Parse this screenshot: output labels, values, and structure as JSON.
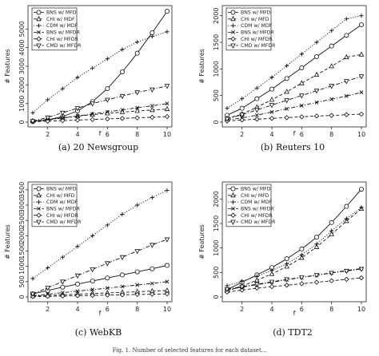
{
  "figure_footnote": "Fig. 1. Number of selected features for each dataset...",
  "chart_data": [
    {
      "type": "line",
      "caption": "(a) 20 Newsgroup",
      "xlabel": "f",
      "ylabel": "# Features",
      "xlim": [
        1,
        10
      ],
      "ylim": [
        0,
        6000
      ],
      "xticks": [
        2,
        4,
        6,
        8,
        10
      ],
      "yticks": [
        0,
        1000,
        2000,
        3000,
        4000,
        5000
      ],
      "legend_position": "top-left",
      "x": [
        1,
        2,
        3,
        4,
        5,
        6,
        7,
        8,
        9,
        10
      ],
      "series": [
        {
          "name": "BNS w/ MFD",
          "marker": "circle",
          "dash": "solid",
          "values": [
            40,
            120,
            300,
            600,
            1100,
            1800,
            2700,
            3700,
            4800,
            5950
          ]
        },
        {
          "name": "CHI w/ MDF",
          "marker": "triangle-up",
          "dash": "dashed",
          "values": [
            60,
            140,
            230,
            320,
            400,
            470,
            540,
            600,
            650,
            700
          ]
        },
        {
          "name": "CDM w/ MDF",
          "marker": "plus",
          "dash": "dotted",
          "values": [
            500,
            1200,
            1800,
            2400,
            2900,
            3400,
            3900,
            4300,
            4600,
            4850
          ]
        },
        {
          "name": "BNS w/ MFDR",
          "marker": "cross",
          "dash": "dashdot",
          "values": [
            40,
            120,
            220,
            330,
            440,
            550,
            660,
            770,
            880,
            1000
          ]
        },
        {
          "name": "CHI w/ MFDR",
          "marker": "diamond",
          "dash": "dashed",
          "values": [
            20,
            50,
            80,
            110,
            140,
            170,
            200,
            230,
            260,
            300
          ]
        },
        {
          "name": "CMD w/ MFDR",
          "marker": "triangle-down",
          "dash": "dashdot",
          "values": [
            60,
            250,
            500,
            750,
            1000,
            1200,
            1400,
            1600,
            1750,
            1950
          ]
        }
      ]
    },
    {
      "type": "line",
      "caption": "(b) Reuters 10",
      "xlabel": "f",
      "ylabel": "# Features",
      "xlim": [
        1,
        10
      ],
      "ylim": [
        0,
        2100
      ],
      "xticks": [
        2,
        4,
        6,
        8,
        10
      ],
      "yticks": [
        0,
        500,
        1000,
        1500,
        2000
      ],
      "legend_position": "top-left",
      "x": [
        1,
        2,
        3,
        4,
        5,
        6,
        7,
        8,
        9,
        10
      ],
      "series": [
        {
          "name": "BNS w/ MFD",
          "marker": "circle",
          "dash": "solid",
          "values": [
            130,
            260,
            440,
            620,
            820,
            1020,
            1230,
            1430,
            1630,
            1830
          ]
        },
        {
          "name": "CHI w/ MFD",
          "marker": "triangle-up",
          "dash": "dashed",
          "values": [
            70,
            150,
            280,
            420,
            570,
            730,
            890,
            1050,
            1220,
            1270
          ]
        },
        {
          "name": "CDM w/ MDF",
          "marker": "plus",
          "dash": "dotted",
          "values": [
            260,
            440,
            640,
            840,
            1060,
            1280,
            1500,
            1720,
            1940,
            2000
          ]
        },
        {
          "name": "BNS w/ MFDR",
          "marker": "cross",
          "dash": "dashdot",
          "values": [
            40,
            80,
            130,
            190,
            250,
            310,
            370,
            430,
            490,
            560
          ]
        },
        {
          "name": "CHI w/ MFDR",
          "marker": "diamond",
          "dash": "dashed",
          "values": [
            20,
            40,
            55,
            70,
            85,
            100,
            115,
            125,
            140,
            150
          ]
        },
        {
          "name": "CMD w/ MFDR",
          "marker": "triangle-down",
          "dash": "dashdot",
          "values": [
            60,
            140,
            230,
            320,
            410,
            500,
            590,
            680,
            770,
            860
          ]
        }
      ]
    },
    {
      "type": "line",
      "caption": "(c) WebKB",
      "xlabel": "f",
      "ylabel": "# Features",
      "xlim": [
        1,
        10
      ],
      "ylim": [
        0,
        3600
      ],
      "xticks": [
        2,
        4,
        6,
        8,
        10
      ],
      "yticks": [
        0,
        500,
        1000,
        1500,
        2000,
        2500,
        3000,
        3500
      ],
      "legend_position": "top-left",
      "x": [
        1,
        2,
        3,
        4,
        5,
        6,
        7,
        8,
        9,
        10
      ],
      "series": [
        {
          "name": "BNS w/ MFD",
          "marker": "circle",
          "dash": "solid",
          "values": [
            100,
            210,
            320,
            420,
            520,
            620,
            720,
            820,
            920,
            1030
          ]
        },
        {
          "name": "CHI w/ MFD",
          "marker": "triangle-up",
          "dash": "dashed",
          "values": [
            30,
            50,
            70,
            90,
            110,
            130,
            150,
            170,
            190,
            210
          ]
        },
        {
          "name": "CDM w/ MDF",
          "marker": "plus",
          "dash": "dotted",
          "values": [
            600,
            950,
            1300,
            1650,
            2000,
            2350,
            2700,
            3000,
            3250,
            3480
          ]
        },
        {
          "name": "BNS w/ MFDR",
          "marker": "cross",
          "dash": "dashdot",
          "values": [
            40,
            90,
            140,
            190,
            240,
            290,
            340,
            390,
            440,
            500
          ]
        },
        {
          "name": "CHI w/ MFDR",
          "marker": "diamond",
          "dash": "dashed",
          "values": [
            10,
            20,
            30,
            40,
            50,
            60,
            70,
            80,
            90,
            100
          ]
        },
        {
          "name": "CMD w/ MFDR",
          "marker": "triangle-down",
          "dash": "dashdot",
          "values": [
            100,
            300,
            500,
            700,
            900,
            1100,
            1300,
            1500,
            1700,
            1880
          ]
        }
      ]
    },
    {
      "type": "line",
      "caption": "(d) TDT2",
      "xlabel": "f",
      "ylabel": "# Features",
      "xlim": [
        1,
        10
      ],
      "ylim": [
        0,
        2250
      ],
      "xticks": [
        2,
        4,
        6,
        8,
        10
      ],
      "yticks": [
        0,
        500,
        1000,
        1500,
        2000
      ],
      "legend_position": "top-left",
      "x": [
        1,
        2,
        3,
        4,
        5,
        6,
        7,
        8,
        9,
        10
      ],
      "series": [
        {
          "name": "BNS w/ MFD",
          "marker": "circle",
          "dash": "solid",
          "values": [
            150,
            300,
            450,
            600,
            780,
            980,
            1220,
            1520,
            1850,
            2200
          ]
        },
        {
          "name": "CHI w/ MFD",
          "marker": "triangle-up",
          "dash": "dashed",
          "values": [
            120,
            220,
            340,
            470,
            620,
            800,
            1020,
            1280,
            1550,
            1800
          ]
        },
        {
          "name": "CDM w/ MDF",
          "marker": "plus",
          "dash": "dotted",
          "values": [
            230,
            320,
            420,
            540,
            680,
            860,
            1080,
            1350,
            1600,
            1830
          ]
        },
        {
          "name": "BNS w/ MFDR",
          "marker": "cross",
          "dash": "dashdot",
          "values": [
            150,
            200,
            250,
            300,
            350,
            400,
            440,
            490,
            540,
            580
          ]
        },
        {
          "name": "CHI w/ MFDR",
          "marker": "diamond",
          "dash": "dashed",
          "values": [
            100,
            140,
            180,
            210,
            240,
            270,
            300,
            330,
            360,
            390
          ]
        },
        {
          "name": "CMD w/ MFDR",
          "marker": "triangle-down",
          "dash": "dashdot",
          "values": [
            160,
            210,
            260,
            310,
            360,
            400,
            450,
            490,
            530,
            570
          ]
        }
      ]
    }
  ]
}
